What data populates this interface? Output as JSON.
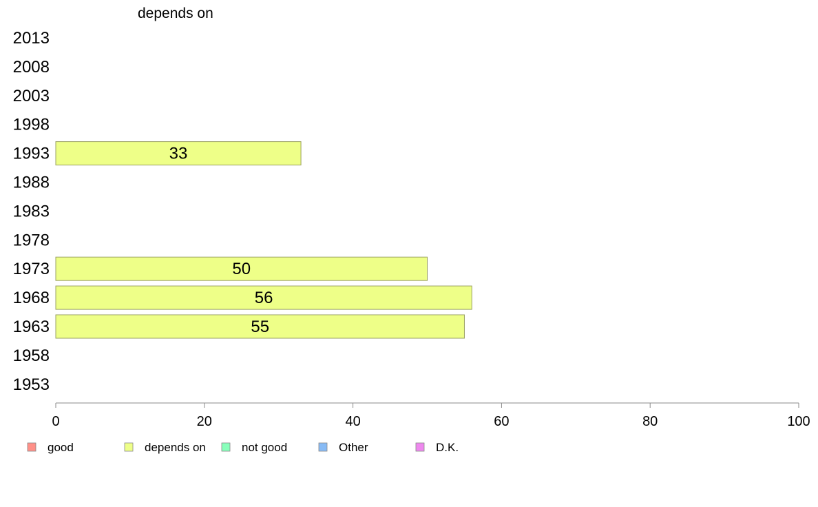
{
  "chart_data": {
    "type": "bar",
    "orientation": "horizontal",
    "title": "depends on",
    "categories": [
      "2013",
      "2008",
      "2003",
      "1998",
      "1993",
      "1988",
      "1983",
      "1978",
      "1973",
      "1968",
      "1963",
      "1958",
      "1953"
    ],
    "series": [
      {
        "name": "depends on",
        "color": "#eeff88",
        "values": [
          null,
          null,
          null,
          null,
          33,
          null,
          null,
          null,
          50,
          56,
          55,
          null,
          null
        ]
      }
    ],
    "xlim": [
      0,
      100
    ],
    "xticks": [
      0,
      20,
      40,
      60,
      80,
      100
    ],
    "grid": false,
    "legend": {
      "placement": "bottom",
      "items": [
        {
          "label": "good",
          "color": "#ff9088"
        },
        {
          "label": "depends on",
          "color": "#eeff88"
        },
        {
          "label": "not good",
          "color": "#88ffbb"
        },
        {
          "label": "Other",
          "color": "#88bbf5"
        },
        {
          "label": "D.K.",
          "color": "#ee88ee"
        }
      ]
    },
    "bar_edge_color": "#9aa060",
    "axis_color": "#888888"
  }
}
